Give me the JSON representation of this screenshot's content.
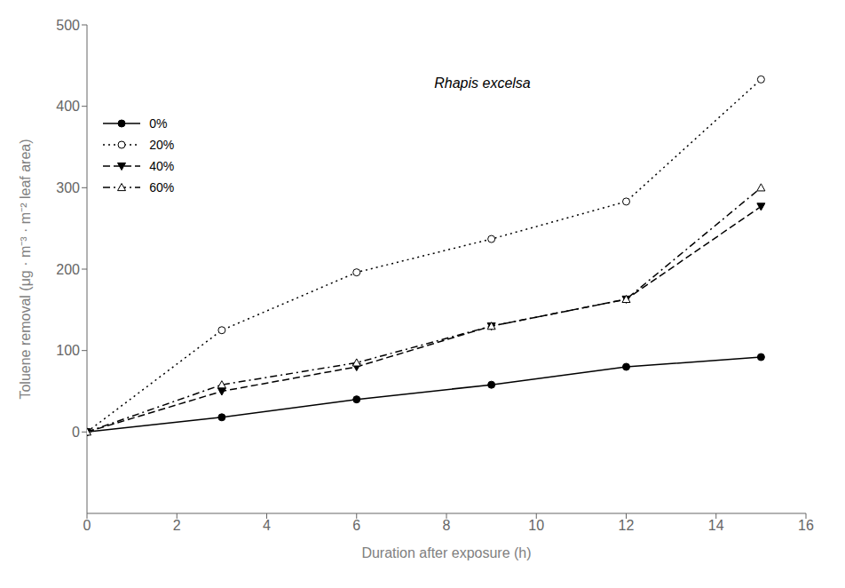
{
  "chart_data": {
    "type": "line",
    "xlabel": "Duration after exposure (h)",
    "ylabel": "Toluene removal (μg · m⁻³ · m⁻² leaf area)",
    "annotation": "Rhapis excelsa",
    "x": [
      0,
      3,
      6,
      9,
      12,
      15
    ],
    "series": [
      {
        "name": "0%",
        "values": [
          0,
          18,
          40,
          58,
          80,
          92
        ],
        "color": "#000000",
        "line_style": "solid",
        "marker": "circle"
      },
      {
        "name": "20%",
        "values": [
          0,
          125,
          196,
          237,
          283,
          433
        ],
        "color": "#000000",
        "line_style": "dotted",
        "marker": "circle-open"
      },
      {
        "name": "40%",
        "values": [
          0,
          50,
          80,
          130,
          163,
          277
        ],
        "color": "#000000",
        "line_style": "dashed",
        "marker": "triangle-down"
      },
      {
        "name": "60%",
        "values": [
          0,
          58,
          85,
          130,
          163,
          300
        ],
        "color": "#000000",
        "line_style": "dashdot",
        "marker": "triangle-up-open"
      }
    ],
    "xlim": [
      0,
      16
    ],
    "ylim": [
      -100,
      500
    ],
    "xticks": [
      0,
      2,
      4,
      6,
      8,
      10,
      12,
      14,
      16
    ],
    "yticks": [
      0,
      100,
      200,
      300,
      400,
      500
    ],
    "legend": "upper left"
  }
}
